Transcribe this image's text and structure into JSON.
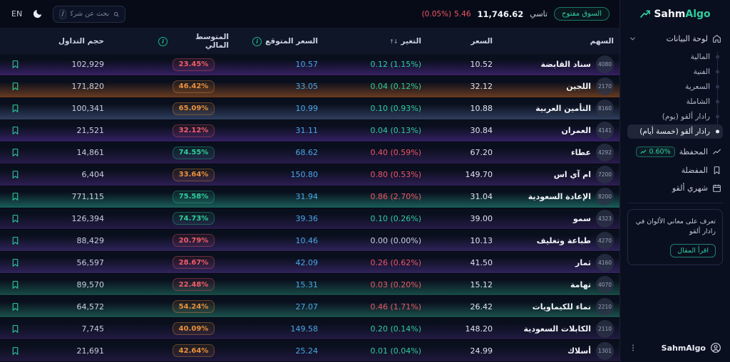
{
  "colors": {
    "accent_green": "#2ece9d",
    "red": "#ef5668",
    "orange": "#e8913d",
    "blue_expected": "#4aa8e8"
  },
  "logo": {
    "part1": "Sahm",
    "part2": "Algo"
  },
  "topbar": {
    "lang": "EN",
    "search": {
      "placeholder": "بحث عن شركة",
      "shortcut": "/"
    },
    "market_status": "السوق مفتوح",
    "index": {
      "name": "تاسي",
      "value": "11,746.62",
      "change_value": "5.46",
      "change_pct": "(0.05%)"
    }
  },
  "sidebar": {
    "dashboard_label": "لوحة البيانات",
    "items": [
      {
        "label": "المالية",
        "active": false
      },
      {
        "label": "الفنية",
        "active": false
      },
      {
        "label": "السعرية",
        "active": false
      },
      {
        "label": "الشاملة",
        "active": false
      },
      {
        "label": "رادار ألقو (يوم)",
        "active": false
      },
      {
        "label": "رادار ألقو (خمسة أيام)",
        "active": true
      }
    ],
    "portfolio": {
      "label": "المحفظة",
      "badge": "0.60%"
    },
    "favorites_label": "المفضلة",
    "monthly_label": "شهري ألقو",
    "promo": {
      "text": "تعرف على معاني الألوان في رادار ألقو",
      "button": "اقرأ المقال"
    },
    "footer_label": "SahmAlgo"
  },
  "table": {
    "headers": {
      "symbol": "السهم",
      "price": "السعر",
      "change": "التغير",
      "expected": "السعر المتوقع",
      "avg": "المتوسط المالي",
      "volume": "حجم التداول"
    },
    "rows": [
      {
        "ticker": "4080",
        "name": "سناد القابضة",
        "price": "10.52",
        "change": "0.12",
        "pct": "(1.15%)",
        "dir": "up",
        "expected": "10.57",
        "avg": "23.45%",
        "avg_tone": "red",
        "volume": "102,929",
        "glow": "#45267c"
      },
      {
        "ticker": "2170",
        "name": "اللجين",
        "price": "32.12",
        "change": "0.04",
        "pct": "(0.12%)",
        "dir": "up",
        "expected": "33.05",
        "avg": "46.42%",
        "avg_tone": "orange",
        "volume": "171,820",
        "glow": "#8a4a22"
      },
      {
        "ticker": "8160",
        "name": "التأمين العربية",
        "price": "10.88",
        "change": "0.10",
        "pct": "(0.93%)",
        "dir": "up",
        "expected": "10.99",
        "avg": "65.09%",
        "avg_tone": "orange",
        "volume": "100,341",
        "glow": "#3c4f76"
      },
      {
        "ticker": "4141",
        "name": "العمران",
        "price": "30.84",
        "change": "0.04",
        "pct": "(0.13%)",
        "dir": "up",
        "expected": "31.11",
        "avg": "32.12%",
        "avg_tone": "red",
        "volume": "21,521",
        "glow": "#41267a"
      },
      {
        "ticker": "4292",
        "name": "عطاء",
        "price": "67.20",
        "change": "0.40",
        "pct": "(0.59%)",
        "dir": "down",
        "expected": "68.62",
        "avg": "74.55%",
        "avg_tone": "green",
        "volume": "14,861",
        "glow": "#33215c"
      },
      {
        "ticker": "7200",
        "name": "ام آي اس",
        "price": "149.70",
        "change": "0.80",
        "pct": "(0.53%)",
        "dir": "down",
        "expected": "150.80",
        "avg": "33.64%",
        "avg_tone": "orange",
        "volume": "6,404",
        "glow": "#3a2468"
      },
      {
        "ticker": "8200",
        "name": "الإعادة السعودية",
        "price": "31.04",
        "change": "0.86",
        "pct": "(2.70%)",
        "dir": "down",
        "expected": "31.94",
        "avg": "75.58%",
        "avg_tone": "green",
        "volume": "771,115",
        "glow": "#1e7a6e"
      },
      {
        "ticker": "4323",
        "name": "سمو",
        "price": "39.00",
        "change": "0.10",
        "pct": "(0.26%)",
        "dir": "up",
        "expected": "39.36",
        "avg": "74.73%",
        "avg_tone": "green",
        "volume": "126,394",
        "glow": "#2f1f56"
      },
      {
        "ticker": "4270",
        "name": "طباعة وتغليف",
        "price": "10.13",
        "change": "0.00",
        "pct": "(0.00%)",
        "dir": "flat",
        "expected": "10.46",
        "avg": "20.79%",
        "avg_tone": "red",
        "volume": "88,429",
        "glow": "#3b2a6e"
      },
      {
        "ticker": "4160",
        "name": "ثمار",
        "price": "41.50",
        "change": "0.26",
        "pct": "(0.62%)",
        "dir": "down",
        "expected": "42.09",
        "avg": "28.67%",
        "avg_tone": "red",
        "volume": "56,597",
        "glow": "#3e2a72"
      },
      {
        "ticker": "4070",
        "name": "تهامة",
        "price": "15.12",
        "change": "0.03",
        "pct": "(0.20%)",
        "dir": "down",
        "expected": "15.31",
        "avg": "22.48%",
        "avg_tone": "red",
        "volume": "89,570",
        "glow": "#1c6157"
      },
      {
        "ticker": "2210",
        "name": "نماء للكيماويات",
        "price": "26.42",
        "change": "0.46",
        "pct": "(1.71%)",
        "dir": "down",
        "expected": "27.07",
        "avg": "54.24%",
        "avg_tone": "orange",
        "volume": "64,572",
        "glow": "#20695f"
      },
      {
        "ticker": "2110",
        "name": "الكابلات السعودية",
        "price": "148.20",
        "change": "0.20",
        "pct": "(0.14%)",
        "dir": "up",
        "expected": "149.58",
        "avg": "40.09%",
        "avg_tone": "orange",
        "volume": "7,745",
        "glow": "#2a1f50"
      },
      {
        "ticker": "1301",
        "name": "أسلاك",
        "price": "24.99",
        "change": "0.01",
        "pct": "(0.04%)",
        "dir": "up",
        "expected": "25.24",
        "avg": "42.64%",
        "avg_tone": "orange",
        "volume": "21,691",
        "glow": "#271c48"
      }
    ]
  }
}
